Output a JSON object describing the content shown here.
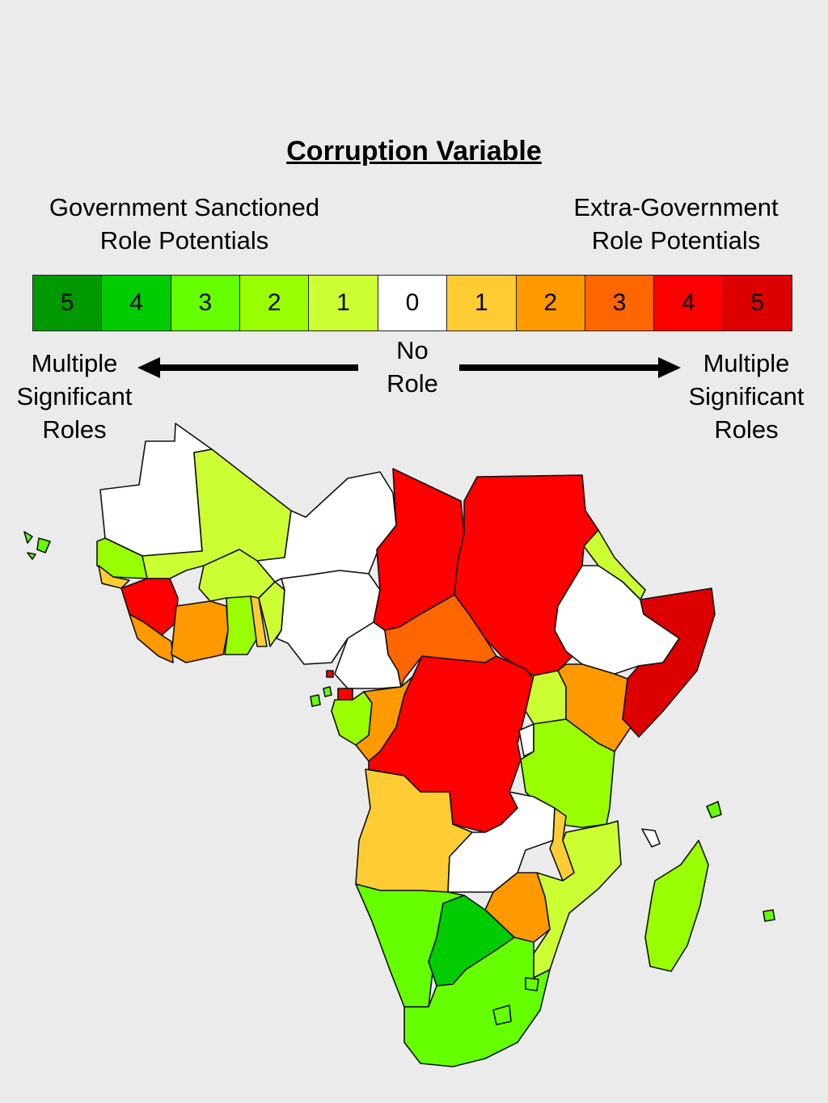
{
  "title": "Corruption Variable",
  "left_heading": [
    "Government Sanctioned",
    "Role Potentials"
  ],
  "right_heading": [
    "Extra-Government",
    "Role Potentials"
  ],
  "scale": [
    {
      "label": "5",
      "color": "#009900"
    },
    {
      "label": "4",
      "color": "#00cc00"
    },
    {
      "label": "3",
      "color": "#66ff00"
    },
    {
      "label": "2",
      "color": "#99ff00"
    },
    {
      "label": "1",
      "color": "#ccff33"
    },
    {
      "label": "0",
      "color": "#ffffff"
    },
    {
      "label": "1",
      "color": "#ffcc33"
    },
    {
      "label": "2",
      "color": "#ff9900"
    },
    {
      "label": "3",
      "color": "#ff6600"
    },
    {
      "label": "4",
      "color": "#ff0000"
    },
    {
      "label": "5",
      "color": "#dd0000"
    }
  ],
  "left_end_label": [
    "Multiple",
    "Significant",
    "Roles"
  ],
  "right_end_label": [
    "Multiple",
    "Significant",
    "Roles"
  ],
  "center_label": [
    "No",
    "Role"
  ],
  "map_colors": {
    "white": "#ffffff",
    "lime1": "#ccff33",
    "green2": "#99ff00",
    "green3": "#66ff00",
    "green4": "#00cc00",
    "yellow1": "#ffcc33",
    "orange2": "#ff9900",
    "orange3": "#ff6600",
    "red4": "#ff0000",
    "red5": "#dd0000"
  }
}
